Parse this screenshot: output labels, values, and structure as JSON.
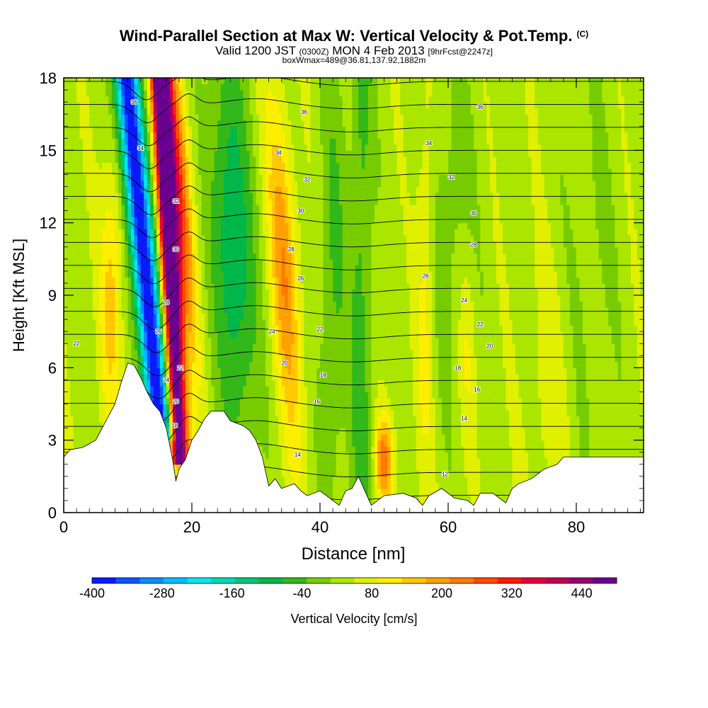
{
  "title": {
    "main": "Wind-Parallel Section at Max W: Vertical Velocity & Pot.Temp.",
    "copyright": "(C)",
    "line2_a": "Valid 1200 JST",
    "line2_b": "(0300Z)",
    "line2_c": "MON 4 Feb 2013",
    "line2_d": "[9hrFcst@2247z]",
    "line3": "boxWmax=489@36.81,137.92,1882m"
  },
  "chart_data": {
    "type": "heatmap",
    "xlabel": "Distance [nm]",
    "ylabel": "Height [Kft MSL]",
    "xlim": [
      0,
      90.5
    ],
    "ylim": [
      0,
      18
    ],
    "x_ticks": [
      0,
      20,
      40,
      60,
      80
    ],
    "y_ticks": [
      0,
      3,
      6,
      9,
      12,
      15,
      18
    ],
    "grid": false,
    "colorbar": {
      "label": "Vertical Velocity [cm/s]",
      "tick_labels": [
        -400,
        -280,
        -160,
        -40,
        80,
        200,
        320,
        440
      ],
      "min": -400,
      "max": 500,
      "step": 40,
      "colors": [
        "#0a1aff",
        "#0a55ff",
        "#0a8cff",
        "#00bfff",
        "#00e8f0",
        "#00d8b8",
        "#00c878",
        "#00b84a",
        "#33b81a",
        "#77cc00",
        "#aae600",
        "#e0f000",
        "#ffee00",
        "#ffc800",
        "#ffa000",
        "#ff7a00",
        "#ff4a00",
        "#ff1a00",
        "#e6003c",
        "#c00050",
        "#9a0070",
        "#6a0090"
      ]
    },
    "terrain": [
      [
        0,
        2.3
      ],
      [
        1,
        2.6
      ],
      [
        3,
        2.7
      ],
      [
        5,
        3.0
      ],
      [
        6,
        3.5
      ],
      [
        7,
        4.0
      ],
      [
        8,
        4.5
      ],
      [
        9,
        5.4
      ],
      [
        10,
        6.2
      ],
      [
        11,
        6.1
      ],
      [
        12,
        5.6
      ],
      [
        13,
        5.0
      ],
      [
        14,
        4.5
      ],
      [
        15,
        4.2
      ],
      [
        16,
        3.5
      ],
      [
        17,
        2.2
      ],
      [
        17.5,
        1.3
      ],
      [
        18,
        1.8
      ],
      [
        19,
        2.2
      ],
      [
        20,
        3.0
      ],
      [
        21,
        3.4
      ],
      [
        22,
        3.9
      ],
      [
        23,
        4.2
      ],
      [
        25,
        4.2
      ],
      [
        26,
        3.8
      ],
      [
        28,
        3.6
      ],
      [
        29,
        3.4
      ],
      [
        30,
        3.0
      ],
      [
        31,
        2.3
      ],
      [
        32,
        1.1
      ],
      [
        33,
        1.4
      ],
      [
        34,
        1.0
      ],
      [
        36,
        1.2
      ],
      [
        37,
        0.9
      ],
      [
        38,
        0.7
      ],
      [
        40,
        0.9
      ],
      [
        41,
        0.7
      ],
      [
        42,
        0.5
      ],
      [
        43,
        0.3
      ],
      [
        44,
        0.9
      ],
      [
        45,
        1.0
      ],
      [
        46,
        1.5
      ],
      [
        47,
        0.9
      ],
      [
        48,
        0.3
      ],
      [
        49,
        0.5
      ],
      [
        50,
        0.7
      ],
      [
        53,
        0.8
      ],
      [
        55,
        0.6
      ],
      [
        56,
        0.3
      ],
      [
        57,
        0.7
      ],
      [
        59,
        1.0
      ],
      [
        61,
        0.6
      ],
      [
        63,
        0.5
      ],
      [
        64,
        0.3
      ],
      [
        65,
        0.8
      ],
      [
        67,
        0.8
      ],
      [
        69,
        0.4
      ],
      [
        70,
        1.0
      ],
      [
        71,
        1.2
      ],
      [
        73,
        1.4
      ],
      [
        75,
        1.8
      ],
      [
        77,
        2.0
      ],
      [
        78,
        2.3
      ],
      [
        82,
        2.3
      ],
      [
        90.5,
        2.3
      ]
    ],
    "theta_contours": {
      "step": 2,
      "range": [
        10,
        48
      ],
      "labels": [
        {
          "value": "36",
          "x": 11,
          "y": 17.0
        },
        {
          "value": "34",
          "x": 12,
          "y": 15.1
        },
        {
          "value": "32",
          "x": 17.5,
          "y": 12.9
        },
        {
          "value": "30",
          "x": 17.5,
          "y": 10.9
        },
        {
          "value": "28",
          "x": 16,
          "y": 8.7
        },
        {
          "value": "26",
          "x": 14.8,
          "y": 7.5
        },
        {
          "value": "24",
          "x": 16,
          "y": 5.5
        },
        {
          "value": "22",
          "x": 18.2,
          "y": 6.0
        },
        {
          "value": "20",
          "x": 17.5,
          "y": 4.6
        },
        {
          "value": "18",
          "x": 17.3,
          "y": 3.6
        },
        {
          "value": "22",
          "x": 2,
          "y": 7.0
        },
        {
          "value": "36",
          "x": 37.5,
          "y": 16.6
        },
        {
          "value": "34",
          "x": 33.5,
          "y": 14.9
        },
        {
          "value": "32",
          "x": 38,
          "y": 13.8
        },
        {
          "value": "30",
          "x": 37,
          "y": 12.5
        },
        {
          "value": "28",
          "x": 35.5,
          "y": 10.9
        },
        {
          "value": "26",
          "x": 37,
          "y": 9.7
        },
        {
          "value": "24",
          "x": 32.5,
          "y": 7.5
        },
        {
          "value": "22",
          "x": 40,
          "y": 7.6
        },
        {
          "value": "20",
          "x": 34.5,
          "y": 6.2
        },
        {
          "value": "18",
          "x": 40.5,
          "y": 5.7
        },
        {
          "value": "16",
          "x": 39.5,
          "y": 4.6
        },
        {
          "value": "14",
          "x": 36.5,
          "y": 2.4
        },
        {
          "value": "36",
          "x": 65,
          "y": 16.8
        },
        {
          "value": "34",
          "x": 57,
          "y": 15.3
        },
        {
          "value": "32",
          "x": 60.5,
          "y": 13.9
        },
        {
          "value": "30",
          "x": 64,
          "y": 12.4
        },
        {
          "value": "28",
          "x": 64,
          "y": 11.1
        },
        {
          "value": "26",
          "x": 56.5,
          "y": 9.8
        },
        {
          "value": "24",
          "x": 62.5,
          "y": 8.8
        },
        {
          "value": "22",
          "x": 65,
          "y": 7.8
        },
        {
          "value": "20",
          "x": 66.5,
          "y": 6.9
        },
        {
          "value": "18",
          "x": 61.5,
          "y": 6.0
        },
        {
          "value": "16",
          "x": 64.5,
          "y": 5.1
        },
        {
          "value": "14",
          "x": 62.5,
          "y": 3.9
        },
        {
          "value": "12",
          "x": 59.5,
          "y": 1.6
        }
      ]
    }
  }
}
